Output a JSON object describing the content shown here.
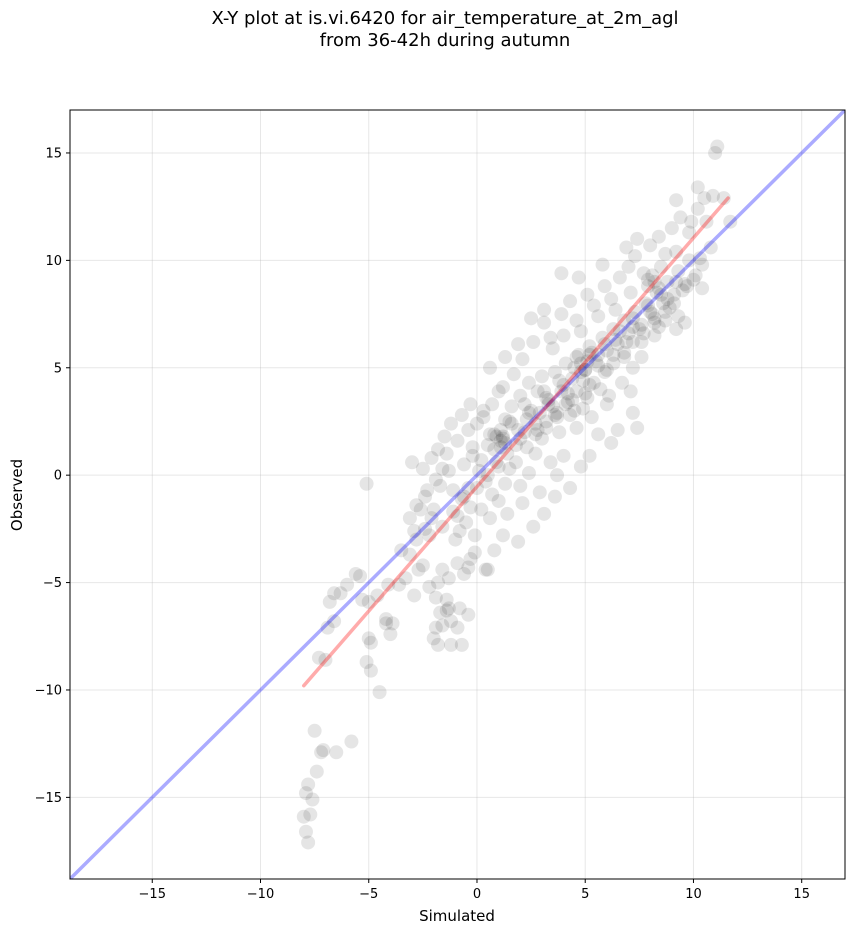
{
  "chart_data": {
    "type": "scatter",
    "title_line1": "X-Y plot at is.vi.6420 for air_temperature_at_2m_agl",
    "title_line2": "from 36-42h during autumn",
    "xlabel": "Simulated",
    "ylabel": "Observed",
    "xlim": [
      -18.8,
      17.0
    ],
    "ylim": [
      -18.8,
      17.0
    ],
    "xticks": [
      -15,
      -10,
      -5,
      0,
      5,
      10,
      15
    ],
    "yticks": [
      -15,
      -10,
      -5,
      0,
      5,
      10,
      15
    ],
    "xtick_labels": [
      "−15",
      "−10",
      "−5",
      "0",
      "5",
      "10",
      "15"
    ],
    "ytick_labels": [
      "−15",
      "−10",
      "−5",
      "0",
      "5",
      "10",
      "15"
    ],
    "grid": true,
    "identity_line": {
      "color": "#0000ff",
      "from": [
        -18.8,
        -18.8
      ],
      "to": [
        17.0,
        17.0
      ]
    },
    "fit_line": {
      "color": "#ff0000",
      "from": [
        -8.0,
        -9.8
      ],
      "to": [
        11.6,
        12.9
      ]
    },
    "points": [
      [
        -7.8,
        -17.1
      ],
      [
        -7.9,
        -16.6
      ],
      [
        -7.7,
        -15.8
      ],
      [
        -8.0,
        -15.9
      ],
      [
        -7.6,
        -15.1
      ],
      [
        -7.9,
        -14.8
      ],
      [
        -7.8,
        -14.4
      ],
      [
        -7.4,
        -13.8
      ],
      [
        -7.5,
        -11.9
      ],
      [
        -7.1,
        -12.8
      ],
      [
        -7.2,
        -12.9
      ],
      [
        -6.5,
        -12.9
      ],
      [
        -5.8,
        -12.4
      ],
      [
        -4.5,
        -10.1
      ],
      [
        -4.9,
        -9.1
      ],
      [
        -5.1,
        -8.7
      ],
      [
        -7.0,
        -8.6
      ],
      [
        -7.3,
        -8.5
      ],
      [
        -4.9,
        -7.8
      ],
      [
        -5.0,
        -7.6
      ],
      [
        -4.0,
        -7.4
      ],
      [
        -4.2,
        -6.9
      ],
      [
        -4.2,
        -6.7
      ],
      [
        -3.9,
        -6.9
      ],
      [
        -6.9,
        -7.1
      ],
      [
        -6.6,
        -6.8
      ],
      [
        -6.8,
        -5.9
      ],
      [
        -6.6,
        -5.5
      ],
      [
        -6.3,
        -5.5
      ],
      [
        -6.0,
        -5.1
      ],
      [
        -5.6,
        -4.6
      ],
      [
        -5.4,
        -4.7
      ],
      [
        -5.3,
        -5.8
      ],
      [
        -5.0,
        -5.9
      ],
      [
        -4.6,
        -5.6
      ],
      [
        -4.1,
        -5.1
      ],
      [
        -3.6,
        -5.1
      ],
      [
        -3.3,
        -4.8
      ],
      [
        -2.9,
        -5.6
      ],
      [
        -2.7,
        -4.4
      ],
      [
        -2.5,
        -4.2
      ],
      [
        -3.1,
        -3.7
      ],
      [
        -3.5,
        -3.5
      ],
      [
        -2.8,
        -3.0
      ],
      [
        -2.4,
        -2.5
      ],
      [
        -2.1,
        -2.0
      ],
      [
        -2.0,
        -1.6
      ],
      [
        -2.6,
        -1.6
      ],
      [
        -2.3,
        -0.7
      ],
      [
        -1.7,
        -0.5
      ],
      [
        -1.6,
        0.3
      ],
      [
        -3.0,
        0.6
      ],
      [
        -5.1,
        -0.4
      ],
      [
        -2.2,
        -5.2
      ],
      [
        -1.9,
        -5.7
      ],
      [
        -1.7,
        -6.4
      ],
      [
        -1.4,
        -6.3
      ],
      [
        -1.2,
        -6.8
      ],
      [
        -0.8,
        -6.2
      ],
      [
        -0.9,
        -7.1
      ],
      [
        -1.6,
        -7.0
      ],
      [
        -1.9,
        -7.1
      ],
      [
        -2.0,
        -7.6
      ],
      [
        -1.8,
        -7.9
      ],
      [
        -1.2,
        -7.9
      ],
      [
        -0.7,
        -7.9
      ],
      [
        -0.4,
        -6.5
      ],
      [
        -1.3,
        -6.2
      ],
      [
        -1.4,
        -5.8
      ],
      [
        -1.8,
        -5.0
      ],
      [
        -1.3,
        -4.8
      ],
      [
        -1.6,
        -4.4
      ],
      [
        -0.9,
        -4.1
      ],
      [
        -0.6,
        -4.6
      ],
      [
        -0.4,
        -4.3
      ],
      [
        -0.3,
        -3.9
      ],
      [
        -0.1,
        -3.6
      ],
      [
        0.4,
        -4.4
      ],
      [
        0.5,
        -4.4
      ],
      [
        0.8,
        -3.5
      ],
      [
        1.2,
        -2.8
      ],
      [
        1.9,
        -3.1
      ],
      [
        2.6,
        -2.4
      ],
      [
        3.1,
        -1.8
      ],
      [
        3.6,
        -1.0
      ],
      [
        4.3,
        -0.6
      ],
      [
        4.8,
        0.4
      ],
      [
        5.2,
        0.9
      ],
      [
        5.6,
        1.9
      ],
      [
        6.2,
        1.5
      ],
      [
        6.5,
        2.1
      ],
      [
        7.4,
        2.2
      ],
      [
        7.2,
        2.9
      ],
      [
        6.0,
        3.3
      ],
      [
        7.1,
        3.9
      ],
      [
        -1.0,
        -3.0
      ],
      [
        -0.8,
        -2.6
      ],
      [
        -0.5,
        -2.2
      ],
      [
        -0.9,
        -1.9
      ],
      [
        -0.3,
        -1.5
      ],
      [
        -0.7,
        -1.1
      ],
      [
        -1.1,
        -0.7
      ],
      [
        -0.4,
        -0.6
      ],
      [
        -1.3,
        0.2
      ],
      [
        -0.6,
        0.5
      ],
      [
        -1.4,
        1.0
      ],
      [
        -0.2,
        1.3
      ],
      [
        -0.9,
        1.6
      ],
      [
        -0.4,
        2.1
      ],
      [
        0.3,
        3.0
      ],
      [
        0.6,
        5.0
      ],
      [
        1.0,
        3.9
      ],
      [
        0.1,
        0.2
      ],
      [
        0.4,
        -0.3
      ],
      [
        0.7,
        -0.9
      ],
      [
        1.0,
        -1.2
      ],
      [
        1.3,
        -0.4
      ],
      [
        0.9,
        0.6
      ],
      [
        1.5,
        0.3
      ],
      [
        2.0,
        -0.5
      ],
      [
        2.4,
        0.1
      ],
      [
        1.8,
        1.4
      ],
      [
        2.2,
        2.0
      ],
      [
        2.7,
        1.0
      ],
      [
        3.0,
        1.7
      ],
      [
        3.4,
        0.6
      ],
      [
        3.7,
        0.0
      ],
      [
        4.0,
        0.9
      ],
      [
        3.2,
        2.5
      ],
      [
        3.8,
        2.0
      ],
      [
        4.3,
        2.8
      ],
      [
        4.6,
        2.2
      ],
      [
        4.9,
        3.1
      ],
      [
        5.3,
        2.7
      ],
      [
        2.5,
        3.0
      ],
      [
        1.6,
        2.4
      ],
      [
        1.2,
        1.8
      ],
      [
        0.5,
        1.4
      ],
      [
        0.0,
        2.4
      ],
      [
        -0.2,
        0.9
      ],
      [
        0.2,
        -1.6
      ],
      [
        -0.1,
        -2.8
      ],
      [
        0.6,
        -2.0
      ],
      [
        1.4,
        -1.8
      ],
      [
        2.1,
        -1.3
      ],
      [
        2.9,
        -0.8
      ],
      [
        0.8,
        1.2
      ],
      [
        1.1,
        2.1
      ],
      [
        1.6,
        3.2
      ],
      [
        2.0,
        3.7
      ],
      [
        2.3,
        2.6
      ],
      [
        2.8,
        3.9
      ],
      [
        3.0,
        4.6
      ],
      [
        3.3,
        3.5
      ],
      [
        3.6,
        4.8
      ],
      [
        3.9,
        3.9
      ],
      [
        4.1,
        5.2
      ],
      [
        4.4,
        4.5
      ],
      [
        4.7,
        5.6
      ],
      [
        5.0,
        4.9
      ],
      [
        5.2,
        6.0
      ],
      [
        5.5,
        5.3
      ],
      [
        5.8,
        6.4
      ],
      [
        6.0,
        5.8
      ],
      [
        6.3,
        6.8
      ],
      [
        6.5,
        6.1
      ],
      [
        6.8,
        7.2
      ],
      [
        7.0,
        6.6
      ],
      [
        7.3,
        7.6
      ],
      [
        7.6,
        7.0
      ],
      [
        7.8,
        8.0
      ],
      [
        8.1,
        7.5
      ],
      [
        8.3,
        8.5
      ],
      [
        8.6,
        8.0
      ],
      [
        8.8,
        9.0
      ],
      [
        9.1,
        8.4
      ],
      [
        9.3,
        9.5
      ],
      [
        9.6,
        8.9
      ],
      [
        9.8,
        10.0
      ],
      [
        10.1,
        9.3
      ],
      [
        2.1,
        5.4
      ],
      [
        2.6,
        6.2
      ],
      [
        3.1,
        7.1
      ],
      [
        3.4,
        6.4
      ],
      [
        3.9,
        7.5
      ],
      [
        4.3,
        8.1
      ],
      [
        4.6,
        7.2
      ],
      [
        5.1,
        8.4
      ],
      [
        5.4,
        7.9
      ],
      [
        5.9,
        8.8
      ],
      [
        6.2,
        8.2
      ],
      [
        6.6,
        9.2
      ],
      [
        7.0,
        9.7
      ],
      [
        7.3,
        10.2
      ],
      [
        7.7,
        9.4
      ],
      [
        8.0,
        10.7
      ],
      [
        8.4,
        11.1
      ],
      [
        8.7,
        10.3
      ],
      [
        9.0,
        11.5
      ],
      [
        9.4,
        12.0
      ],
      [
        9.8,
        11.3
      ],
      [
        10.2,
        12.4
      ],
      [
        10.6,
        11.8
      ],
      [
        10.9,
        13.0
      ],
      [
        11.0,
        15.0
      ],
      [
        11.1,
        15.3
      ],
      [
        10.5,
        12.9
      ],
      [
        9.2,
        12.8
      ],
      [
        10.2,
        13.4
      ],
      [
        11.4,
        12.9
      ],
      [
        11.7,
        11.8
      ],
      [
        10.3,
        10.1
      ],
      [
        10.4,
        8.7
      ],
      [
        9.6,
        7.1
      ],
      [
        9.2,
        6.8
      ],
      [
        8.7,
        7.2
      ],
      [
        8.2,
        6.5
      ],
      [
        7.6,
        5.5
      ],
      [
        7.2,
        5.0
      ],
      [
        6.7,
        4.3
      ],
      [
        6.1,
        3.7
      ],
      [
        5.7,
        4.0
      ],
      [
        5.1,
        3.6
      ],
      [
        4.6,
        3.9
      ],
      [
        4.2,
        3.4
      ],
      [
        3.7,
        2.9
      ],
      [
        3.3,
        3.3
      ],
      [
        2.9,
        2.9
      ],
      [
        1.2,
        4.1
      ],
      [
        1.7,
        4.7
      ],
      [
        2.4,
        4.3
      ],
      [
        3.5,
        5.9
      ],
      [
        4.0,
        6.5
      ],
      [
        4.8,
        6.7
      ],
      [
        5.6,
        7.4
      ],
      [
        6.4,
        7.7
      ],
      [
        7.1,
        8.5
      ],
      [
        7.9,
        9.1
      ],
      [
        8.5,
        9.7
      ],
      [
        9.2,
        10.4
      ],
      [
        9.9,
        11.8
      ],
      [
        6.9,
        10.6
      ],
      [
        7.4,
        11.0
      ],
      [
        5.8,
        9.8
      ],
      [
        4.7,
        9.2
      ],
      [
        3.9,
        9.4
      ],
      [
        3.1,
        7.7
      ],
      [
        2.5,
        7.3
      ],
      [
        1.9,
        6.1
      ],
      [
        1.3,
        5.5
      ],
      [
        0.7,
        3.3
      ],
      [
        0.3,
        2.7
      ],
      [
        -0.3,
        3.3
      ],
      [
        -0.7,
        2.8
      ],
      [
        -1.2,
        2.4
      ],
      [
        -1.5,
        1.8
      ],
      [
        -1.8,
        1.2
      ],
      [
        -2.1,
        0.8
      ],
      [
        -2.5,
        0.3
      ],
      [
        -1.9,
        -0.2
      ],
      [
        -2.4,
        -1.0
      ],
      [
        -2.8,
        -1.4
      ],
      [
        -3.1,
        -2.0
      ],
      [
        -2.9,
        -2.6
      ],
      [
        -2.2,
        -2.8
      ],
      [
        -1.6,
        -2.4
      ],
      [
        -1.1,
        -1.7
      ],
      [
        -0.6,
        -1.0
      ],
      [
        0.0,
        -0.6
      ],
      [
        0.5,
        0.0
      ],
      [
        1.0,
        0.4
      ],
      [
        1.4,
        1.0
      ],
      [
        1.8,
        0.6
      ],
      [
        2.3,
        1.3
      ],
      [
        2.7,
        1.9
      ],
      [
        3.2,
        2.2
      ],
      [
        3.6,
        2.8
      ],
      [
        4.1,
        3.3
      ],
      [
        4.5,
        3.0
      ],
      [
        5.0,
        3.8
      ],
      [
        5.4,
        4.3
      ],
      [
        5.9,
        4.8
      ],
      [
        6.3,
        5.2
      ],
      [
        6.8,
        5.7
      ],
      [
        7.2,
        6.2
      ],
      [
        7.7,
        6.6
      ],
      [
        8.2,
        7.1
      ],
      [
        8.7,
        7.6
      ],
      [
        9.1,
        8.0
      ],
      [
        9.5,
        8.6
      ],
      [
        10.0,
        9.1
      ],
      [
        10.4,
        9.8
      ],
      [
        10.8,
        10.6
      ],
      [
        0.9,
        1.8
      ],
      [
        1.3,
        2.6
      ],
      [
        1.9,
        2.1
      ],
      [
        2.2,
        3.3
      ],
      [
        2.7,
        2.4
      ],
      [
        3.1,
        3.9
      ],
      [
        3.5,
        3.2
      ],
      [
        3.8,
        4.4
      ],
      [
        4.2,
        3.8
      ],
      [
        4.5,
        5.0
      ],
      [
        4.9,
        4.4
      ],
      [
        5.2,
        5.6
      ],
      [
        5.6,
        5.1
      ],
      [
        5.9,
        6.1
      ],
      [
        6.3,
        5.6
      ],
      [
        6.6,
        6.7
      ],
      [
        6.9,
        6.2
      ],
      [
        7.2,
        7.3
      ],
      [
        7.5,
        6.8
      ],
      [
        7.9,
        7.9
      ],
      [
        8.2,
        7.3
      ],
      [
        8.5,
        8.4
      ],
      [
        8.9,
        7.8
      ],
      [
        9.2,
        9.0
      ],
      [
        0.2,
        0.7
      ],
      [
        0.6,
        1.9
      ],
      [
        1.1,
        1.3
      ],
      [
        1.5,
        2.5
      ],
      [
        2.0,
        1.7
      ],
      [
        2.4,
        2.9
      ],
      [
        2.8,
        2.1
      ],
      [
        3.2,
        3.6
      ],
      [
        3.7,
        2.7
      ],
      [
        4.0,
        4.2
      ],
      [
        4.4,
        3.5
      ],
      [
        4.8,
        4.8
      ],
      [
        5.2,
        4.2
      ],
      [
        5.6,
        5.6
      ],
      [
        6.0,
        4.9
      ],
      [
        6.4,
        6.3
      ],
      [
        6.8,
        5.5
      ],
      [
        7.2,
        6.9
      ],
      [
        7.6,
        6.2
      ],
      [
        8.0,
        7.6
      ],
      [
        8.4,
        6.9
      ],
      [
        8.8,
        8.2
      ],
      [
        9.3,
        7.4
      ],
      [
        9.7,
        8.8
      ],
      [
        1.1,
        1.6
      ],
      [
        1.2,
        1.7
      ],
      [
        0.8,
        1.9
      ],
      [
        1.3,
        1.5
      ],
      [
        4.8,
        5.2
      ],
      [
        5.1,
        5.3
      ],
      [
        5.0,
        4.9
      ],
      [
        4.6,
        5.5
      ],
      [
        5.3,
        5.7
      ],
      [
        7.9,
        8.8
      ],
      [
        8.2,
        9.0
      ],
      [
        8.4,
        8.7
      ],
      [
        8.1,
        9.3
      ]
    ]
  }
}
